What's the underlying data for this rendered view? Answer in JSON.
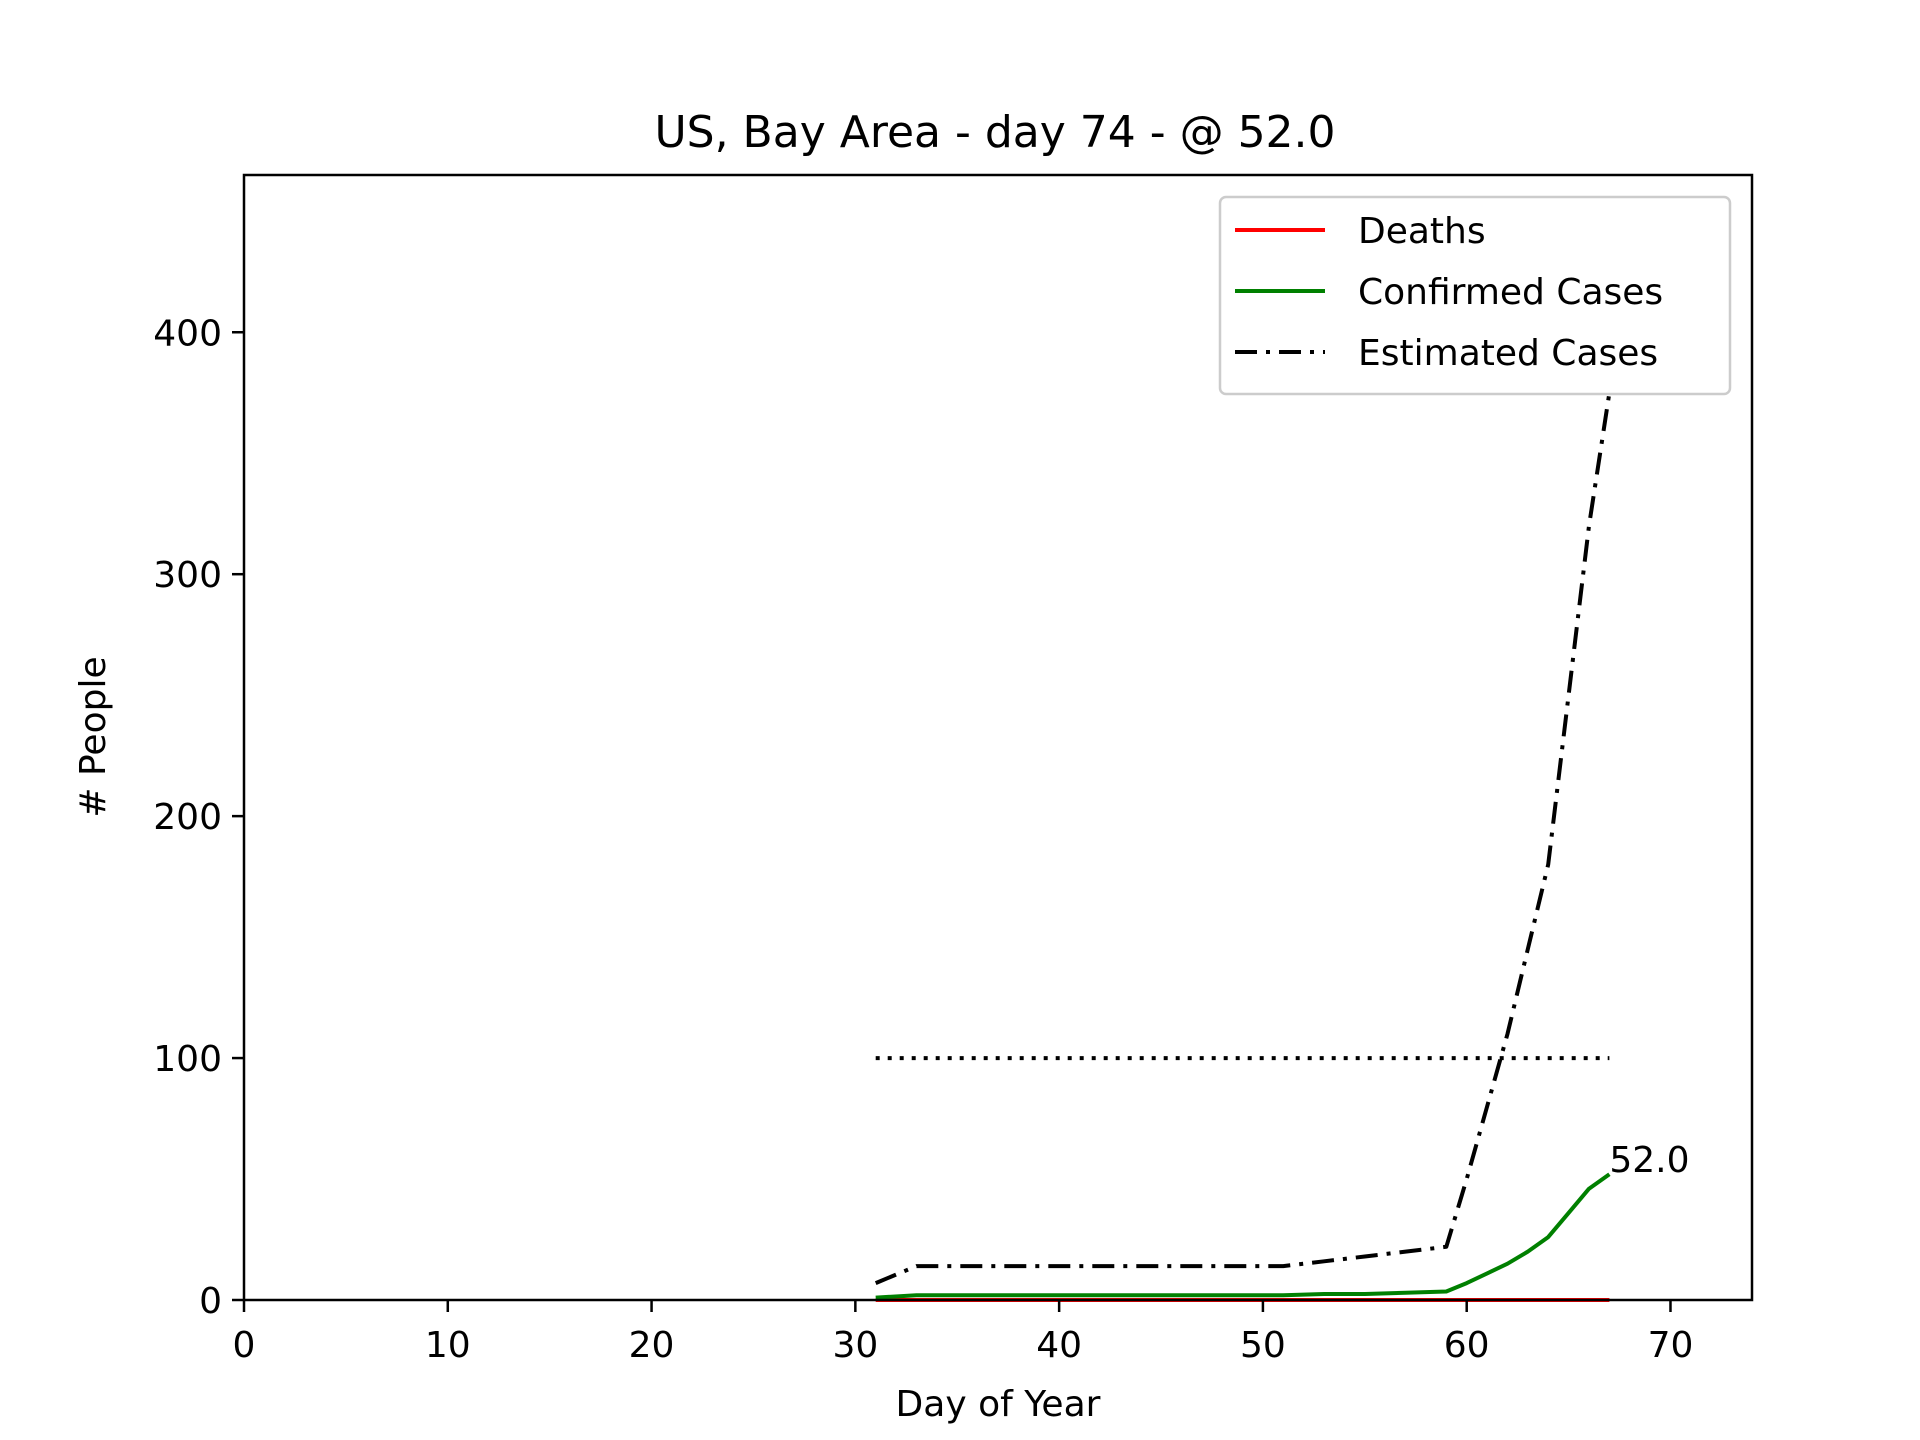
{
  "chart_data": {
    "type": "line",
    "title": "US, Bay Area - day 74 - @ 52.0",
    "xlabel": "Day of Year",
    "ylabel": "# People",
    "xlim": [
      0,
      74
    ],
    "ylim": [
      0,
      465
    ],
    "xticks": [
      0,
      10,
      20,
      30,
      40,
      50,
      60,
      70
    ],
    "yticks": [
      0,
      100,
      200,
      300,
      400
    ],
    "grid": false,
    "legend_position": "top-right",
    "series": [
      {
        "name": "Deaths",
        "color": "#ff0000",
        "style": "solid",
        "x": [
          31,
          33,
          35,
          37,
          39,
          41,
          43,
          45,
          47,
          49,
          51,
          53,
          55,
          57,
          59,
          60,
          61,
          62,
          63,
          64,
          65,
          66,
          67
        ],
        "y": [
          0,
          0,
          0,
          0,
          0,
          0,
          0,
          0,
          0,
          0,
          0,
          0,
          0,
          0,
          0,
          0,
          0,
          0,
          0,
          0,
          0,
          0,
          0
        ]
      },
      {
        "name": "Confirmed Cases",
        "color": "#008000",
        "style": "solid",
        "x": [
          31,
          33,
          35,
          37,
          39,
          41,
          43,
          45,
          47,
          49,
          51,
          53,
          55,
          57,
          59,
          60,
          61,
          62,
          63,
          64,
          65,
          66,
          67
        ],
        "y": [
          1,
          2,
          2,
          2,
          2,
          2,
          2,
          2,
          2,
          2,
          2,
          2.5,
          2.5,
          3,
          3.5,
          7,
          11,
          15,
          20,
          26,
          36,
          46,
          52
        ]
      },
      {
        "name": "Estimated Cases",
        "color": "#000000",
        "style": "dashdot",
        "x": [
          31,
          33,
          35,
          37,
          39,
          41,
          43,
          45,
          47,
          49,
          51,
          53,
          55,
          57,
          59,
          60,
          61,
          62,
          63,
          64,
          65,
          66,
          67
        ],
        "y": [
          7,
          14,
          14,
          14,
          14,
          14,
          14,
          14,
          14,
          14,
          14,
          16,
          18,
          20,
          22,
          50,
          80,
          110,
          145,
          180,
          250,
          320,
          375
        ]
      },
      {
        "color": "#000000",
        "style": "dotted",
        "x": [
          31,
          67
        ],
        "y": [
          100,
          100
        ]
      }
    ],
    "annotations": [
      {
        "text": "52.0",
        "x": 67,
        "y": 52
      }
    ]
  }
}
